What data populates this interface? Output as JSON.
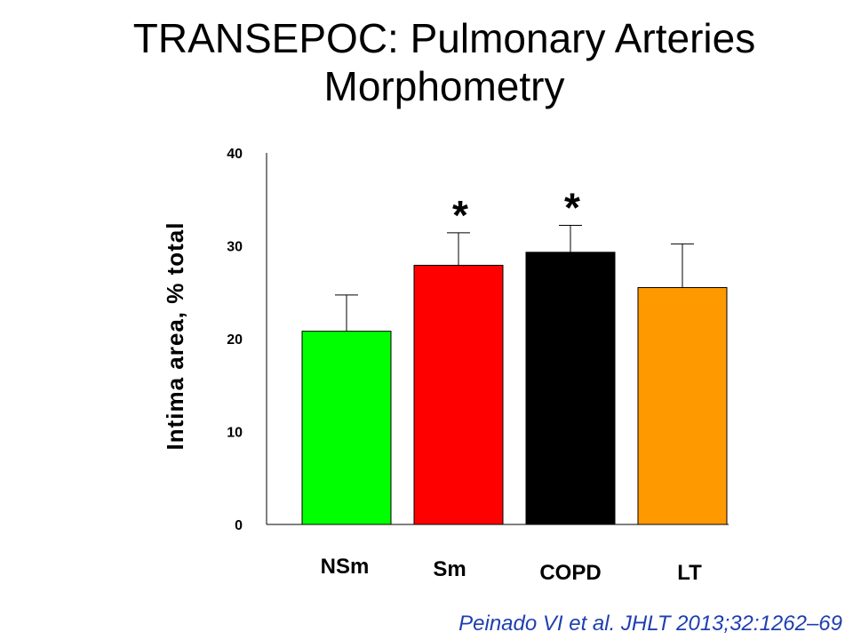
{
  "title": {
    "line1": "TRANSEPOC: Pulmonary Arteries",
    "line2": "Morphometry"
  },
  "citation": "Peinado VI et al. JHLT 2013;32:1262–69",
  "chart_data": {
    "type": "bar",
    "title": "TRANSEPOC: Pulmonary Arteries Morphometry",
    "xlabel": "",
    "ylabel": "Intima area, %  total",
    "ylim": [
      0,
      40
    ],
    "yticks": [
      0,
      10,
      20,
      30,
      40
    ],
    "grid": false,
    "categories": [
      "NSm",
      "Sm",
      "COPD",
      "LT"
    ],
    "values": [
      20.8,
      27.9,
      29.3,
      25.5
    ],
    "errors": [
      3.9,
      3.5,
      2.9,
      4.7
    ],
    "colors": [
      "#00ff00",
      "#ff0000",
      "#000000",
      "#ff9900"
    ],
    "annotations": [
      {
        "category": "Sm",
        "text": "*"
      },
      {
        "category": "COPD",
        "text": "*"
      }
    ]
  }
}
